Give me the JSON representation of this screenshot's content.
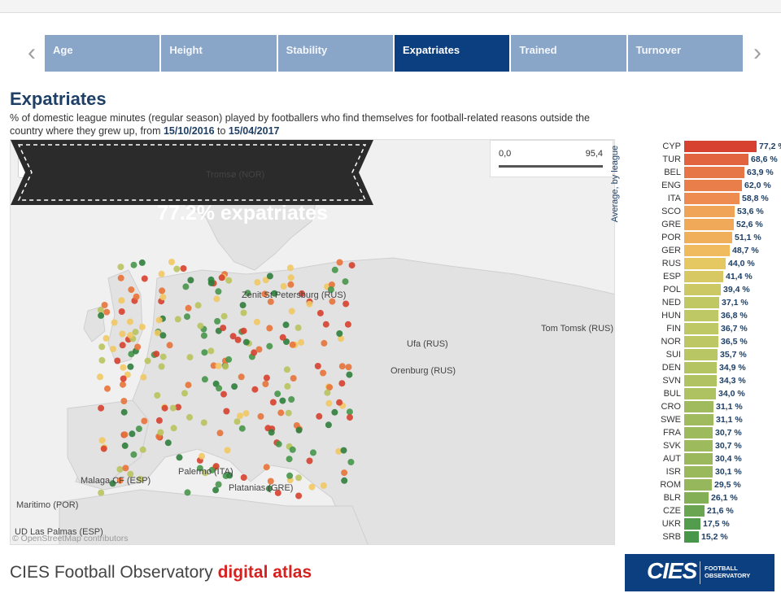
{
  "tabs": [
    {
      "label": "Age",
      "active": false
    },
    {
      "label": "Height",
      "active": false
    },
    {
      "label": "Stability",
      "active": false
    },
    {
      "label": "Expatriates",
      "active": true
    },
    {
      "label": "Trained",
      "active": false
    },
    {
      "label": "Turnover",
      "active": false
    }
  ],
  "nav": {
    "prev": "‹",
    "next": "›"
  },
  "header": {
    "title": "Expatriates",
    "subtitle_pre": "% of domestic league minutes (regular season) played by footballers who find themselves for football-related reasons outside the country where they grew up, from ",
    "date_from": "15/10/2016",
    "subtitle_mid": " to ",
    "date_to": "15/04/2017"
  },
  "map": {
    "legend_min": "0,0",
    "legend_max": "95,4",
    "attribution": "© OpenStreetMap contributors",
    "banner": "77.2% expatriates",
    "cities": [
      "Tromsø (NOR)",
      "Zenit St Petersburg (RUS)",
      "Ufa (RUS)",
      "Orenburg (RUS)",
      "Tom Tomsk (RUS)",
      "Malaga CF (ESP)",
      "Palermo (ITA)",
      "Platanias (GRE)",
      "Maritimo (POR)",
      "UD Las Palmas (ESP)"
    ]
  },
  "colors": {
    "tab": "#89a5c8",
    "tab_active": "#0b3f80",
    "title": "#1e3f66",
    "accent": "#d8211f",
    "high": "#d7412f",
    "mid": "#f1c863",
    "low": "#46964a"
  },
  "footer": {
    "title_pre": "CIES Football Observatory ",
    "title_accent": "digital atlas",
    "logo_main": "CIES",
    "logo_sub": "FOOTBALL OBSERVATORY"
  },
  "chart_data": {
    "type": "bar",
    "orientation": "horizontal",
    "ylabel": "Average, by league",
    "xlim": [
      0,
      95.4
    ],
    "categories": [
      "CYP",
      "TUR",
      "BEL",
      "ENG",
      "ITA",
      "SCO",
      "GRE",
      "POR",
      "GER",
      "RUS",
      "ESP",
      "POL",
      "NED",
      "HUN",
      "FIN",
      "NOR",
      "SUI",
      "DEN",
      "SVN",
      "BUL",
      "CRO",
      "SWE",
      "FRA",
      "SVK",
      "AUT",
      "ISR",
      "ROM",
      "BLR",
      "CZE",
      "UKR",
      "SRB"
    ],
    "values": [
      77.2,
      68.6,
      63.9,
      62.0,
      58.8,
      53.6,
      52.6,
      51.1,
      48.7,
      44.0,
      41.4,
      39.4,
      37.1,
      36.8,
      36.7,
      36.5,
      35.7,
      34.9,
      34.3,
      34.0,
      31.1,
      31.1,
      30.7,
      30.7,
      30.4,
      30.1,
      29.5,
      26.1,
      21.6,
      17.5,
      15.2
    ],
    "labels": [
      "77,2 %",
      "68,6 %",
      "63,9 %",
      "62,0 %",
      "58,8 %",
      "53,6 %",
      "52,6 %",
      "51,1 %",
      "48,7 %",
      "44,0 %",
      "41,4 %",
      "39,4 %",
      "37,1 %",
      "36,8 %",
      "36,7 %",
      "36,5 %",
      "35,7 %",
      "34,9 %",
      "34,3 %",
      "34,0 %",
      "31,1 %",
      "31,1 %",
      "30,7 %",
      "30,7 %",
      "30,4 %",
      "30,1 %",
      "29,5 %",
      "26,1 %",
      "21,6 %",
      "17,5 %",
      "15,2 %"
    ]
  }
}
